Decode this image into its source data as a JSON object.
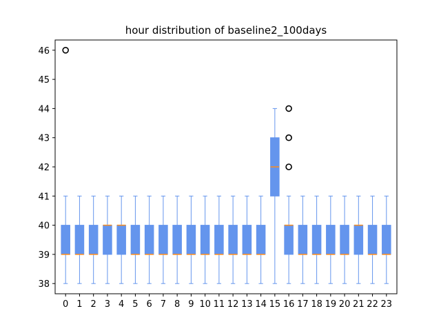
{
  "chart_data": {
    "type": "boxplot",
    "title": "hour distribution of baseline2_100days",
    "xlabel": "",
    "ylabel": "",
    "categories": [
      "0",
      "1",
      "2",
      "3",
      "4",
      "5",
      "6",
      "7",
      "8",
      "9",
      "10",
      "11",
      "12",
      "13",
      "14",
      "15",
      "16",
      "17",
      "18",
      "19",
      "20",
      "21",
      "22",
      "23"
    ],
    "ylim": [
      37.65,
      46.35
    ],
    "yticks": [
      38,
      39,
      40,
      41,
      42,
      43,
      44,
      45,
      46
    ],
    "grid": false,
    "box_color": "#6495ed",
    "median_color": "#ff8c1a",
    "boxes": [
      {
        "whislo": 38,
        "q1": 39,
        "med": 39,
        "q3": 40,
        "whishi": 41,
        "fliers": [
          46
        ]
      },
      {
        "whislo": 38,
        "q1": 39,
        "med": 39,
        "q3": 40,
        "whishi": 41,
        "fliers": []
      },
      {
        "whislo": 38,
        "q1": 39,
        "med": 39,
        "q3": 40,
        "whishi": 41,
        "fliers": []
      },
      {
        "whislo": 38,
        "q1": 39,
        "med": 40,
        "q3": 40,
        "whishi": 41,
        "fliers": []
      },
      {
        "whislo": 38,
        "q1": 39,
        "med": 40,
        "q3": 40,
        "whishi": 41,
        "fliers": []
      },
      {
        "whislo": 38,
        "q1": 39,
        "med": 39,
        "q3": 40,
        "whishi": 41,
        "fliers": []
      },
      {
        "whislo": 38,
        "q1": 39,
        "med": 39,
        "q3": 40,
        "whishi": 41,
        "fliers": []
      },
      {
        "whislo": 38,
        "q1": 39,
        "med": 39,
        "q3": 40,
        "whishi": 41,
        "fliers": []
      },
      {
        "whislo": 38,
        "q1": 39,
        "med": 39,
        "q3": 40,
        "whishi": 41,
        "fliers": []
      },
      {
        "whislo": 38,
        "q1": 39,
        "med": 39,
        "q3": 40,
        "whishi": 41,
        "fliers": []
      },
      {
        "whislo": 38,
        "q1": 39,
        "med": 39,
        "q3": 40,
        "whishi": 41,
        "fliers": []
      },
      {
        "whislo": 38,
        "q1": 39,
        "med": 39,
        "q3": 40,
        "whishi": 41,
        "fliers": []
      },
      {
        "whislo": 38,
        "q1": 39,
        "med": 39,
        "q3": 40,
        "whishi": 41,
        "fliers": []
      },
      {
        "whislo": 38,
        "q1": 39,
        "med": 39,
        "q3": 40,
        "whishi": 41,
        "fliers": []
      },
      {
        "whislo": 38,
        "q1": 39,
        "med": 39,
        "q3": 40,
        "whishi": 41,
        "fliers": []
      },
      {
        "whislo": 38,
        "q1": 41,
        "med": 42,
        "q3": 43,
        "whishi": 44,
        "fliers": []
      },
      {
        "whislo": 38,
        "q1": 39,
        "med": 40,
        "q3": 40,
        "whishi": 41,
        "fliers": [
          42,
          43,
          44
        ]
      },
      {
        "whislo": 38,
        "q1": 39,
        "med": 39,
        "q3": 40,
        "whishi": 41,
        "fliers": []
      },
      {
        "whislo": 38,
        "q1": 39,
        "med": 39,
        "q3": 40,
        "whishi": 41,
        "fliers": []
      },
      {
        "whislo": 38,
        "q1": 39,
        "med": 39,
        "q3": 40,
        "whishi": 41,
        "fliers": []
      },
      {
        "whislo": 38,
        "q1": 39,
        "med": 39,
        "q3": 40,
        "whishi": 41,
        "fliers": []
      },
      {
        "whislo": 38,
        "q1": 39,
        "med": 40,
        "q3": 40,
        "whishi": 41,
        "fliers": []
      },
      {
        "whislo": 38,
        "q1": 39,
        "med": 39,
        "q3": 40,
        "whishi": 41,
        "fliers": []
      },
      {
        "whislo": 38,
        "q1": 39,
        "med": 39,
        "q3": 40,
        "whishi": 41,
        "fliers": []
      }
    ]
  }
}
